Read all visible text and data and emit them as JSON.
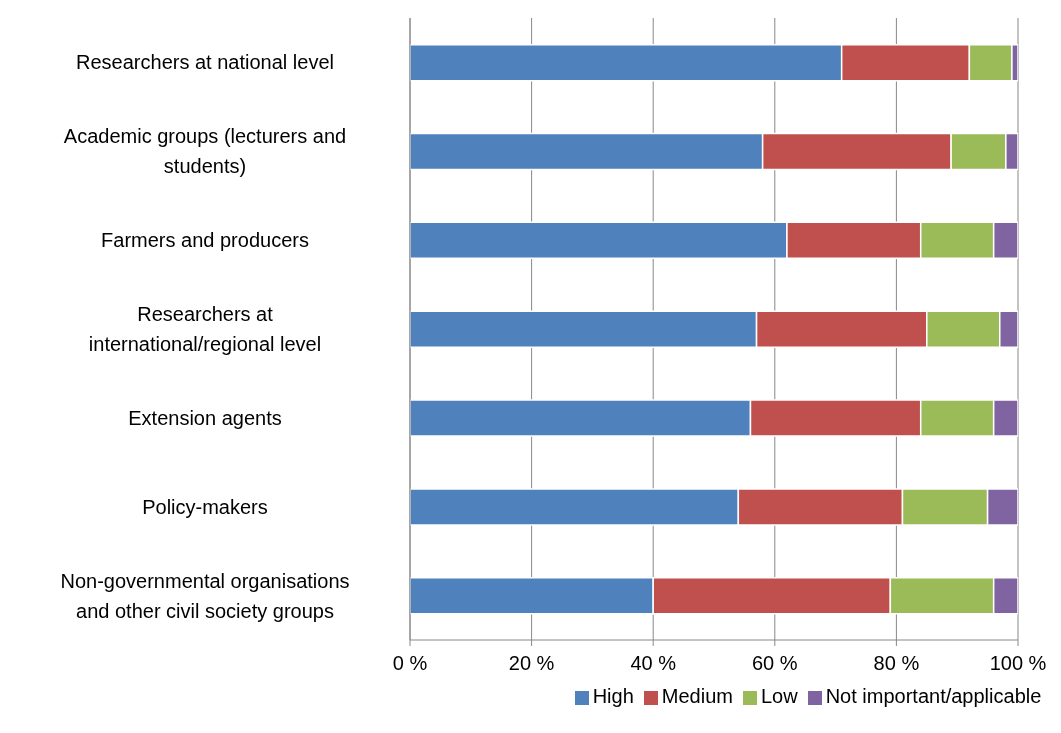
{
  "chart_data": {
    "type": "bar",
    "orientation": "horizontal",
    "stacked": true,
    "categories": [
      "Researchers at national level",
      "Academic groups (lecturers and students)",
      "Farmers and producers",
      "Researchers at international/regional level",
      "Extension agents",
      "Policy-makers",
      "Non-governmental organisations and other civil society groups"
    ],
    "series": [
      {
        "name": "High",
        "color": "#4f81bd",
        "values": [
          71,
          58,
          62,
          57,
          56,
          54,
          40
        ]
      },
      {
        "name": "Medium",
        "color": "#c0504d",
        "values": [
          21,
          31,
          22,
          28,
          28,
          27,
          39
        ]
      },
      {
        "name": "Low",
        "color": "#9bbb59",
        "values": [
          7,
          9,
          12,
          12,
          12,
          14,
          17
        ]
      },
      {
        "name": "Not important/applicable",
        "color": "#8064a2",
        "values": [
          1,
          2,
          4,
          3,
          4,
          5,
          4
        ]
      }
    ],
    "xlim": [
      0,
      100
    ],
    "xticks": [
      {
        "value": 0,
        "label": "0 %"
      },
      {
        "value": 20,
        "label": "20 %"
      },
      {
        "value": 40,
        "label": "40 %"
      },
      {
        "value": 60,
        "label": "60 %"
      },
      {
        "value": 80,
        "label": "80 %"
      },
      {
        "value": 100,
        "label": "100 %"
      }
    ],
    "grid": "x",
    "legend": "bottom"
  }
}
